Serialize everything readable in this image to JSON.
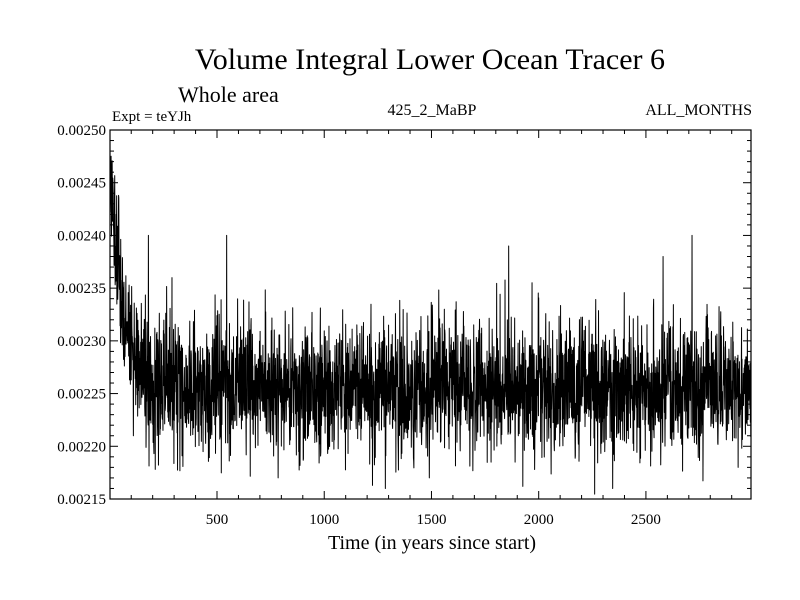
{
  "chart_data": {
    "type": "line",
    "title": "Volume Integral Lower Ocean Tracer 6",
    "subtitle": "Whole area",
    "expt_label": "Expt = teYJh",
    "run_label": "425_2_MaBP",
    "months_label": "ALL_MONTHS",
    "xlabel": "Time (in years since start)",
    "ylabel": "",
    "xlim": [
      1,
      2990
    ],
    "ylim": [
      0.00215,
      0.0025
    ],
    "x_ticks": [
      500,
      1000,
      1500,
      2000,
      2500
    ],
    "x_tick_labels": [
      "500",
      "1000",
      "1500",
      "2000",
      "2500"
    ],
    "y_ticks": [
      0.00215,
      0.0022,
      0.00225,
      0.0023,
      0.00235,
      0.0024,
      0.00245,
      0.0025
    ],
    "y_tick_labels": [
      "0.00215",
      "0.00220",
      "0.00225",
      "0.00230",
      "0.00235",
      "0.00240",
      "0.00245",
      "0.00250"
    ],
    "series": [
      {
        "name": "Volume Integral Lower Ocean Tracer 6",
        "color": "#000000",
        "x_start": 1,
        "x_step": 1,
        "count": 2990,
        "initial_value": 0.00246,
        "equilibrium_value": 0.002255,
        "decay_years": 60,
        "noise_sd": 3.2e-05,
        "spikes": [
          {
            "x": 1,
            "y": 0.00248
          },
          {
            "x": 15,
            "y": 0.00245
          },
          {
            "x": 30,
            "y": 0.00242
          },
          {
            "x": 60,
            "y": 0.00235
          },
          {
            "x": 110,
            "y": 0.00221
          },
          {
            "x": 180,
            "y": 0.0024
          },
          {
            "x": 290,
            "y": 0.00236
          },
          {
            "x": 545,
            "y": 0.0024
          },
          {
            "x": 785,
            "y": 0.00217
          },
          {
            "x": 1285,
            "y": 0.00216
          },
          {
            "x": 1490,
            "y": 0.00217
          },
          {
            "x": 1560,
            "y": 0.00233
          },
          {
            "x": 1860,
            "y": 0.00239
          },
          {
            "x": 1905,
            "y": 0.00221
          },
          {
            "x": 2345,
            "y": 0.00216
          },
          {
            "x": 2580,
            "y": 0.00238
          },
          {
            "x": 2715,
            "y": 0.0024
          },
          {
            "x": 2930,
            "y": 0.00218
          }
        ]
      }
    ]
  }
}
